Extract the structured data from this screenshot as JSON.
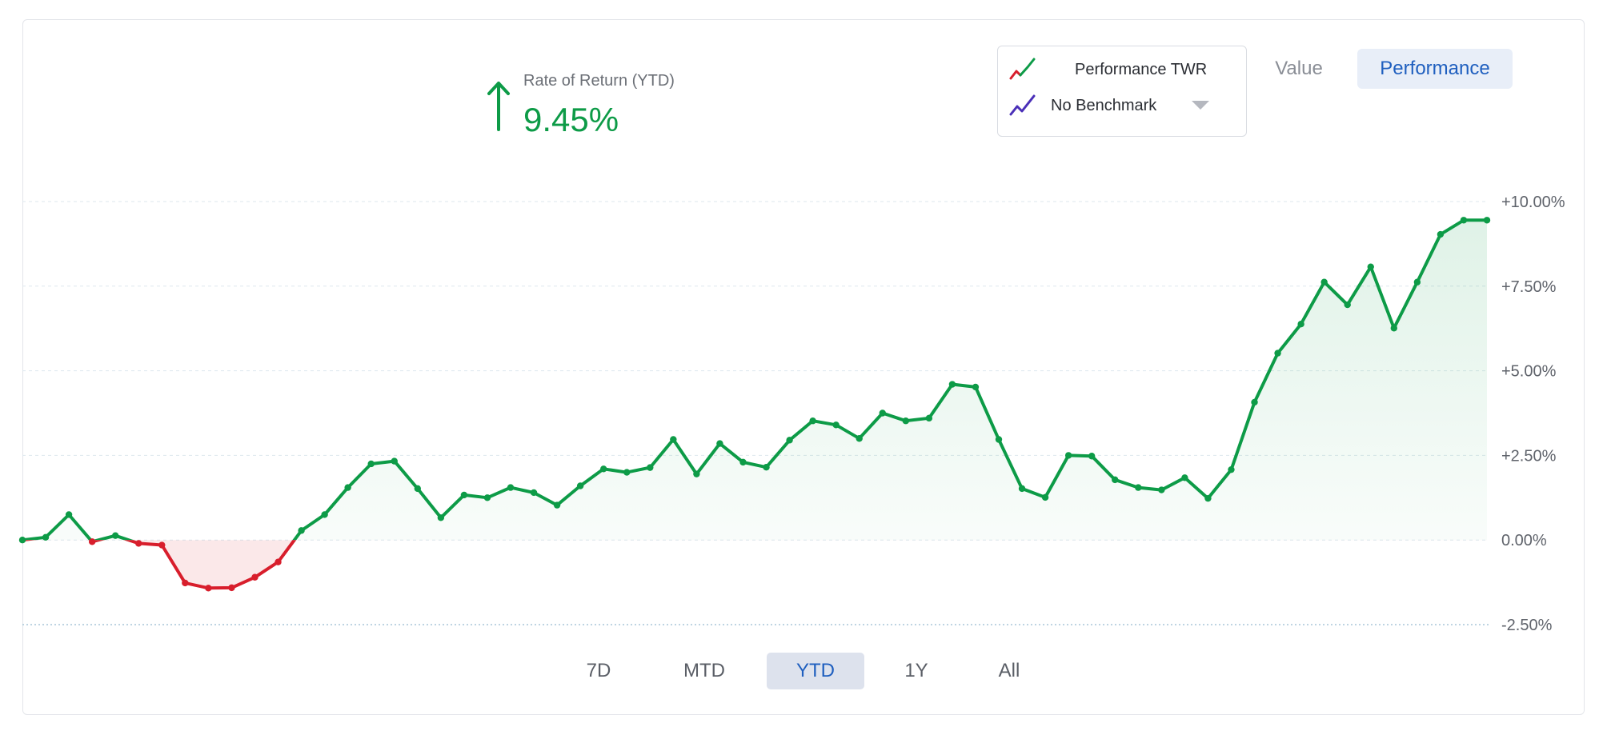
{
  "summary": {
    "label": "Rate of Return (YTD)",
    "value": "9.45%",
    "direction": "up",
    "color": "#0d9b47"
  },
  "legend": {
    "series_label": "Performance TWR",
    "benchmark_label": "No Benchmark"
  },
  "view_toggle": {
    "value_label": "Value",
    "performance_label": "Performance",
    "selected": "Performance"
  },
  "range_selector": {
    "options": [
      "7D",
      "MTD",
      "YTD",
      "1Y",
      "All"
    ],
    "selected": "YTD"
  },
  "colors": {
    "positive": "#0d9b47",
    "negative": "#d81e2c",
    "benchmark": "#4a2fb8",
    "accent": "#1f5fbf"
  },
  "chart_data": {
    "type": "line",
    "title": "",
    "xlabel": "",
    "ylabel": "",
    "y_axis_position": "right",
    "ylim": [
      -2.5,
      10
    ],
    "y_ticks": [
      -2.5,
      0,
      2.5,
      5,
      7.5,
      10
    ],
    "y_tick_labels": [
      "-2.50%",
      "0.00%",
      "+2.50%",
      "+5.00%",
      "+7.50%",
      "+10.00%"
    ],
    "grid": true,
    "series": [
      {
        "name": "Performance TWR",
        "values": [
          0.0,
          0.08,
          0.75,
          -0.05,
          0.13,
          -0.1,
          -0.15,
          -1.27,
          -1.42,
          -1.41,
          -1.1,
          -0.65,
          0.28,
          0.75,
          1.55,
          2.25,
          2.33,
          1.52,
          0.66,
          1.33,
          1.25,
          1.55,
          1.4,
          1.03,
          1.6,
          2.1,
          2.0,
          2.14,
          2.97,
          1.95,
          2.85,
          2.3,
          2.15,
          2.95,
          3.52,
          3.4,
          3.0,
          3.75,
          3.52,
          3.6,
          4.6,
          4.52,
          2.97,
          1.52,
          1.26,
          2.5,
          2.48,
          1.78,
          1.55,
          1.48,
          1.84,
          1.23,
          2.08,
          4.07,
          5.52,
          6.38,
          7.62,
          6.95,
          8.07,
          6.26,
          7.62,
          9.03,
          9.45,
          9.45
        ]
      }
    ]
  }
}
